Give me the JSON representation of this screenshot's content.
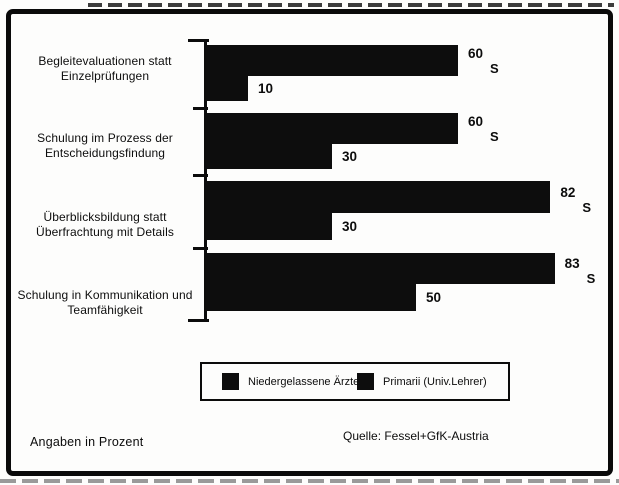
{
  "chart_data": {
    "type": "bar",
    "orientation": "horizontal",
    "unit": "percent",
    "title": "",
    "categories": [
      "Begleitevaluationen statt Einzelprüfungen",
      "Schulung im Prozess der Entscheidungsfindung",
      "Überblicksbildung statt Überfrachtung mit Details",
      "Schulung in Kommunikation und Teamfähigkeit"
    ],
    "series": [
      {
        "name": "Niedergelassene Ärzte",
        "values": [
          60,
          60,
          82,
          83
        ],
        "significance": [
          "S",
          "S",
          "S",
          "S"
        ]
      },
      {
        "name": "Primarii (Univ.Lehrer)",
        "values": [
          10,
          30,
          30,
          50
        ]
      }
    ],
    "xlim": [
      0,
      100
    ],
    "grid": false,
    "legend_position": "bottom",
    "bar_color": "#0d0d0d",
    "background_color": "#ffffff",
    "border_color": "#000000"
  },
  "legend": {
    "items": [
      {
        "label": "Niedergelassene Ärzte",
        "swatch_color": "#0d0d0d"
      },
      {
        "label": "Primarii (Univ.Lehrer)",
        "swatch_color": "#0d0d0d"
      }
    ]
  },
  "footer": {
    "note": "Angaben in Prozent",
    "source": "Quelle: Fessel+GfK-Austria"
  }
}
